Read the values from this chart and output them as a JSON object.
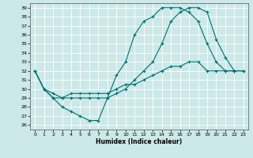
{
  "xlabel": "Humidex (Indice chaleur)",
  "bg_color": "#cce8e8",
  "grid_color": "#ffffff",
  "line_color": "#007070",
  "xlim": [
    -0.5,
    23.5
  ],
  "ylim": [
    25.5,
    39.5
  ],
  "xticks": [
    0,
    1,
    2,
    3,
    4,
    5,
    6,
    7,
    8,
    9,
    10,
    11,
    12,
    13,
    14,
    15,
    16,
    17,
    18,
    19,
    20,
    21,
    22,
    23
  ],
  "yticks": [
    26,
    27,
    28,
    29,
    30,
    31,
    32,
    33,
    34,
    35,
    36,
    37,
    38,
    39
  ],
  "line1_x": [
    0,
    1,
    2,
    3,
    4,
    5,
    6,
    7,
    8,
    9,
    10,
    11,
    12,
    13,
    14,
    15,
    16,
    17,
    18,
    19,
    20,
    21,
    22
  ],
  "line1_y": [
    32,
    30,
    29,
    28,
    27.5,
    27,
    26.5,
    26.5,
    29,
    31.5,
    33,
    36,
    37.5,
    38,
    39,
    39,
    39,
    38.5,
    37.5,
    35,
    33,
    32,
    32
  ],
  "line2_x": [
    0,
    1,
    2,
    3,
    4,
    5,
    6,
    7,
    8,
    9,
    10,
    11,
    12,
    13,
    14,
    15,
    16,
    17,
    18,
    19,
    20,
    21,
    22,
    23
  ],
  "line2_y": [
    32,
    30,
    29.5,
    29,
    29,
    29,
    29,
    29,
    29,
    29.5,
    30,
    31,
    32,
    33,
    35,
    37.5,
    38.5,
    39,
    39,
    38.5,
    35.5,
    33.5,
    32,
    32
  ],
  "line3_x": [
    0,
    1,
    2,
    3,
    4,
    5,
    6,
    7,
    8,
    9,
    10,
    11,
    12,
    13,
    14,
    15,
    16,
    17,
    18,
    19,
    20,
    21,
    22,
    23
  ],
  "line3_y": [
    32,
    30,
    29,
    29,
    29.5,
    29.5,
    29.5,
    29.5,
    29.5,
    30,
    30.5,
    30.5,
    31,
    31.5,
    32,
    32.5,
    32.5,
    33,
    33,
    32,
    32,
    32,
    32,
    32
  ]
}
